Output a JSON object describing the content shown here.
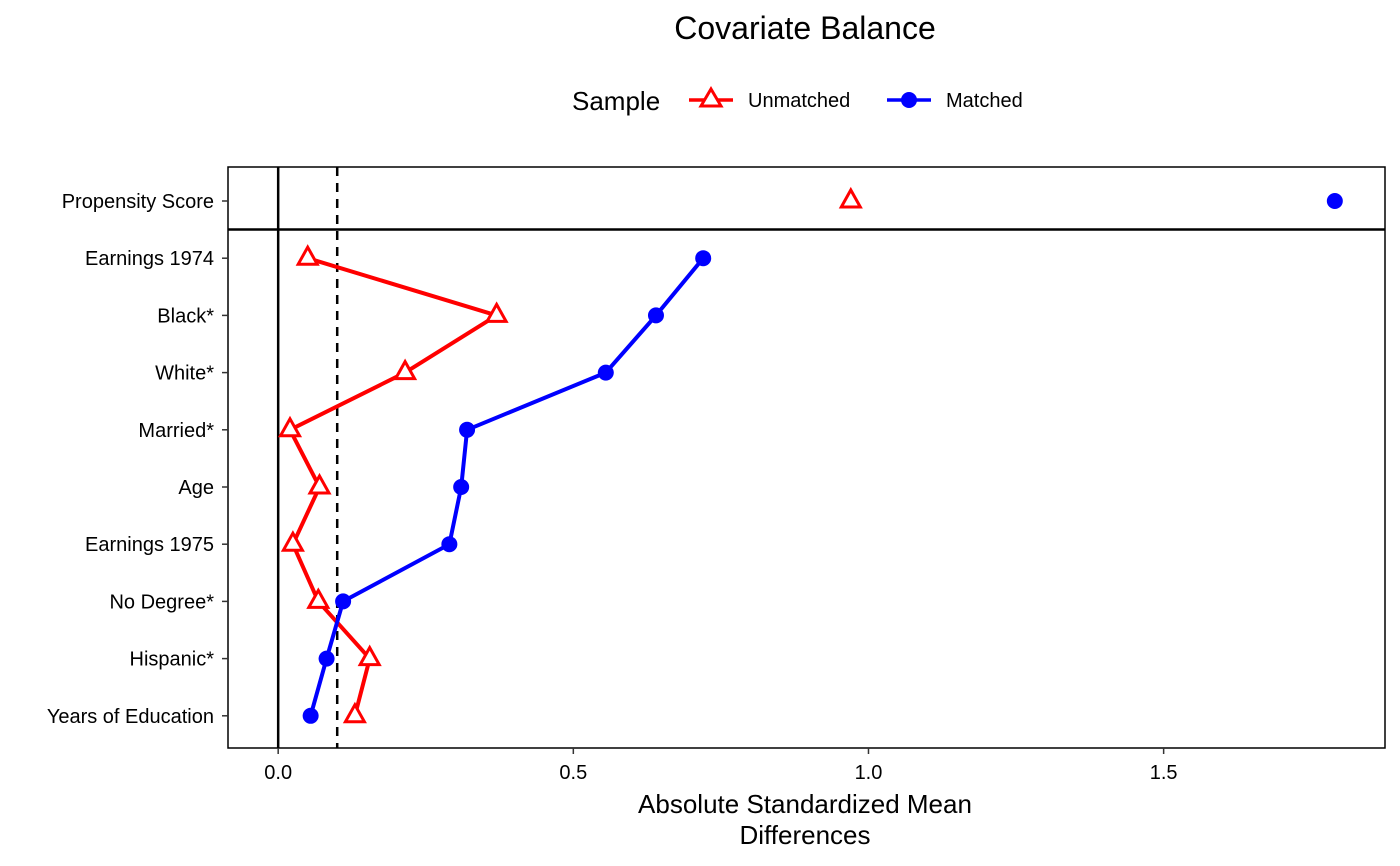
{
  "chart_data": {
    "type": "line",
    "title": "Covariate Balance",
    "legend": {
      "title": "Sample",
      "placement": "top",
      "entries": [
        "Unmatched",
        "Matched"
      ]
    },
    "xlabel_lines": [
      "Absolute Standardized Mean",
      "Differences"
    ],
    "xlim": [
      -0.085,
      1.875
    ],
    "xticks": [
      0.0,
      0.5,
      1.0,
      1.5
    ],
    "xtick_labels": [
      "0.0",
      "0.5",
      "1.0",
      "1.5"
    ],
    "reference_lines": {
      "solid": 0.0,
      "dashed": 0.1
    },
    "categories": [
      "Propensity Score",
      "Earnings 1974",
      "Black*",
      "White*",
      "Married*",
      "Age",
      "Earnings 1975",
      "No Degree*",
      "Hispanic*",
      "Years of Education"
    ],
    "separated_category": "Propensity Score",
    "series": [
      {
        "name": "Unmatched",
        "color": "#ff0000",
        "marker": "triangle-open",
        "values": [
          0.97,
          0.05,
          0.37,
          0.215,
          0.02,
          0.07,
          0.025,
          0.068,
          0.155,
          0.13
        ]
      },
      {
        "name": "Matched",
        "color": "#0000ff",
        "marker": "circle-filled",
        "values": [
          1.79,
          0.72,
          0.64,
          0.555,
          0.32,
          0.31,
          0.29,
          0.11,
          0.082,
          0.055
        ]
      }
    ]
  }
}
